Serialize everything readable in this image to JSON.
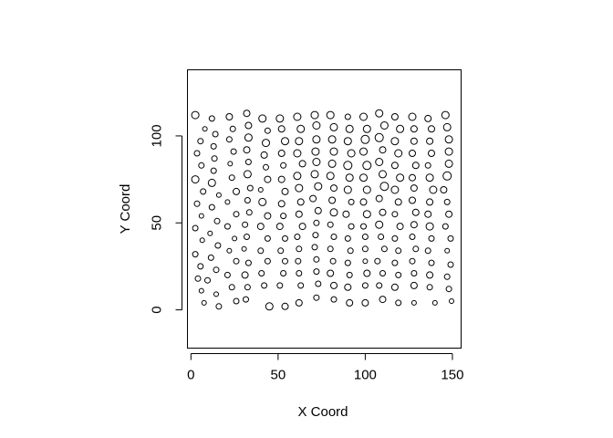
{
  "chart_data": {
    "type": "scatter",
    "title": "",
    "xlabel": "X Coord",
    "ylabel": "Y Coord",
    "xlim": [
      -2,
      155
    ],
    "ylim": [
      -22,
      138
    ],
    "xticks": [
      0,
      50,
      100,
      150
    ],
    "yticks": [
      0,
      50,
      100
    ],
    "xtick_labels": [
      "0",
      "50",
      "100",
      "150"
    ],
    "ytick_labels": [
      "0",
      "50",
      "100"
    ],
    "marker": "open-circle",
    "marker_color": "#000000",
    "grid": false,
    "size_encoding": "point diameter varies between points",
    "points": [
      [
        2.5,
        112,
        4
      ],
      [
        8,
        104,
        2.5
      ],
      [
        5.5,
        97,
        3
      ],
      [
        3.5,
        90,
        3
      ],
      [
        6,
        83,
        3
      ],
      [
        2.5,
        75,
        4
      ],
      [
        7,
        68,
        3
      ],
      [
        3.5,
        61,
        3
      ],
      [
        6,
        54,
        2.5
      ],
      [
        2.5,
        47,
        3
      ],
      [
        6.5,
        40,
        2.5
      ],
      [
        2.5,
        32,
        3
      ],
      [
        5.5,
        25,
        3
      ],
      [
        4,
        18,
        3
      ],
      [
        6,
        11,
        2.5
      ],
      [
        7.5,
        4,
        2.5
      ],
      [
        12,
        110,
        3
      ],
      [
        14,
        101,
        3
      ],
      [
        13,
        94,
        3
      ],
      [
        13.5,
        87,
        3
      ],
      [
        13,
        80,
        3
      ],
      [
        12,
        73,
        4
      ],
      [
        16,
        66,
        2.5
      ],
      [
        12,
        59,
        3
      ],
      [
        15,
        51,
        3
      ],
      [
        11,
        44,
        2.5
      ],
      [
        15.5,
        37,
        3
      ],
      [
        11.5,
        30,
        3
      ],
      [
        14.5,
        23,
        3
      ],
      [
        9.5,
        17,
        3
      ],
      [
        14.5,
        9,
        2.5
      ],
      [
        16,
        2,
        3
      ],
      [
        22,
        111,
        3.5
      ],
      [
        24,
        104,
        3
      ],
      [
        22,
        98,
        3
      ],
      [
        24.5,
        91,
        3
      ],
      [
        22.5,
        84,
        2.5
      ],
      [
        23.5,
        76,
        3
      ],
      [
        26,
        68,
        3.5
      ],
      [
        21,
        62,
        2.5
      ],
      [
        26,
        55,
        3
      ],
      [
        21,
        48,
        3
      ],
      [
        25,
        41,
        2.5
      ],
      [
        22,
        34,
        2.5
      ],
      [
        26,
        28,
        3
      ],
      [
        21,
        20,
        3
      ],
      [
        23.5,
        13,
        3
      ],
      [
        26,
        5,
        3
      ],
      [
        32,
        113,
        3.5
      ],
      [
        33,
        106,
        3.5
      ],
      [
        33,
        99,
        4
      ],
      [
        32,
        92,
        3.5
      ],
      [
        33,
        85,
        3
      ],
      [
        32.5,
        78,
        4
      ],
      [
        34,
        70,
        3
      ],
      [
        32.5,
        63,
        3
      ],
      [
        33.5,
        56,
        3
      ],
      [
        31,
        49,
        3
      ],
      [
        32,
        42,
        3
      ],
      [
        30.5,
        35,
        2.5
      ],
      [
        33,
        27,
        3
      ],
      [
        31,
        20,
        3.5
      ],
      [
        32.5,
        13,
        3
      ],
      [
        31.5,
        6,
        3
      ],
      [
        41,
        110,
        4
      ],
      [
        44,
        103,
        3
      ],
      [
        43,
        96,
        4
      ],
      [
        42,
        89,
        3.5
      ],
      [
        43,
        82,
        3
      ],
      [
        44,
        75,
        3.5
      ],
      [
        40,
        69,
        2.5
      ],
      [
        41,
        62,
        4
      ],
      [
        44,
        54,
        3.5
      ],
      [
        40,
        48,
        3.5
      ],
      [
        44,
        41,
        3
      ],
      [
        40,
        34,
        3
      ],
      [
        44,
        28,
        3
      ],
      [
        40.5,
        21,
        3
      ],
      [
        42,
        14,
        3
      ],
      [
        45,
        2,
        4
      ],
      [
        51,
        110,
        4
      ],
      [
        52,
        104,
        3.5
      ],
      [
        54,
        97,
        4
      ],
      [
        52,
        90,
        3.5
      ],
      [
        53,
        83,
        3
      ],
      [
        52,
        75,
        3.5
      ],
      [
        54,
        68,
        3.5
      ],
      [
        52,
        61,
        3.5
      ],
      [
        53,
        54,
        3
      ],
      [
        51,
        48,
        3.5
      ],
      [
        54,
        41,
        3
      ],
      [
        51.5,
        34,
        3
      ],
      [
        54,
        28,
        3
      ],
      [
        53,
        21,
        3
      ],
      [
        51,
        14,
        3
      ],
      [
        54,
        2,
        3.5
      ],
      [
        61,
        111,
        4
      ],
      [
        63,
        104,
        4
      ],
      [
        62,
        97,
        4
      ],
      [
        61,
        90,
        4
      ],
      [
        64,
        84,
        3.5
      ],
      [
        61,
        77,
        4
      ],
      [
        62,
        70,
        4
      ],
      [
        63,
        62,
        3.5
      ],
      [
        62,
        55,
        3.5
      ],
      [
        64,
        48,
        3.5
      ],
      [
        61,
        42,
        3
      ],
      [
        62,
        35,
        3
      ],
      [
        61.5,
        28,
        3
      ],
      [
        62,
        21,
        3
      ],
      [
        63,
        14,
        3
      ],
      [
        62,
        4,
        3.5
      ],
      [
        71,
        112,
        4
      ],
      [
        72,
        106,
        4
      ],
      [
        72,
        98,
        4
      ],
      [
        71.5,
        91,
        4
      ],
      [
        72,
        85,
        4
      ],
      [
        71,
        78,
        4
      ],
      [
        73,
        71,
        4
      ],
      [
        70,
        64,
        3.5
      ],
      [
        73,
        57,
        3.5
      ],
      [
        72,
        50,
        3
      ],
      [
        71.5,
        43,
        3
      ],
      [
        71,
        36,
        3
      ],
      [
        72,
        29,
        3
      ],
      [
        72,
        22,
        3
      ],
      [
        73,
        15,
        3
      ],
      [
        72,
        7,
        3
      ],
      [
        80,
        112,
        4
      ],
      [
        82,
        105,
        4
      ],
      [
        81,
        98,
        4
      ],
      [
        82,
        91,
        4
      ],
      [
        81,
        84,
        4
      ],
      [
        80,
        77,
        4
      ],
      [
        82,
        70,
        3.5
      ],
      [
        81,
        63,
        3.5
      ],
      [
        82,
        56,
        4
      ],
      [
        80,
        49,
        3
      ],
      [
        82,
        42,
        3
      ],
      [
        80,
        35,
        3
      ],
      [
        81.5,
        28,
        3
      ],
      [
        80,
        21,
        3.5
      ],
      [
        82,
        14,
        3.5
      ],
      [
        82,
        6,
        3
      ],
      [
        90,
        111,
        3
      ],
      [
        91,
        104,
        4
      ],
      [
        90,
        97,
        4
      ],
      [
        92,
        90,
        4
      ],
      [
        90,
        83,
        4.5
      ],
      [
        91,
        76,
        4
      ],
      [
        90,
        69,
        4
      ],
      [
        92,
        62,
        3
      ],
      [
        89,
        55,
        3.5
      ],
      [
        92,
        48,
        3
      ],
      [
        90,
        41,
        3
      ],
      [
        91.5,
        34,
        3
      ],
      [
        90,
        27,
        3
      ],
      [
        91,
        20,
        3
      ],
      [
        90,
        13,
        3.5
      ],
      [
        91,
        4,
        3.5
      ],
      [
        99,
        111,
        4
      ],
      [
        101,
        104,
        4
      ],
      [
        100,
        98,
        4.5
      ],
      [
        99,
        91,
        4
      ],
      [
        101,
        83,
        4.5
      ],
      [
        99,
        76,
        4
      ],
      [
        101,
        69,
        4
      ],
      [
        99,
        62,
        3.5
      ],
      [
        101,
        55,
        4
      ],
      [
        99,
        48,
        3
      ],
      [
        100,
        42,
        3
      ],
      [
        100,
        35,
        3
      ],
      [
        100,
        28,
        2.5
      ],
      [
        101,
        21,
        3.5
      ],
      [
        100,
        14,
        3
      ],
      [
        100,
        4,
        3.5
      ],
      [
        108,
        113,
        4
      ],
      [
        111,
        106,
        4
      ],
      [
        108,
        99,
        4.5
      ],
      [
        110,
        92,
        3.5
      ],
      [
        108,
        85,
        4
      ],
      [
        110,
        78,
        4
      ],
      [
        111,
        71,
        4.5
      ],
      [
        108,
        64,
        3.5
      ],
      [
        110,
        56,
        3.5
      ],
      [
        108,
        49,
        4
      ],
      [
        109,
        42,
        3
      ],
      [
        111,
        35,
        3
      ],
      [
        107,
        28,
        3
      ],
      [
        110,
        21,
        3
      ],
      [
        108,
        14,
        3
      ],
      [
        110,
        6,
        3.5
      ],
      [
        117,
        111,
        3.5
      ],
      [
        120,
        104,
        4
      ],
      [
        117,
        97,
        4
      ],
      [
        119,
        90,
        4
      ],
      [
        117,
        83,
        3.5
      ],
      [
        120,
        76,
        4
      ],
      [
        117,
        69,
        4
      ],
      [
        119,
        62,
        3.5
      ],
      [
        117,
        55,
        3
      ],
      [
        120,
        48,
        3.5
      ],
      [
        117,
        41,
        3
      ],
      [
        119,
        34,
        3
      ],
      [
        117,
        27,
        3
      ],
      [
        119,
        20,
        3
      ],
      [
        117,
        13,
        3.5
      ],
      [
        119,
        4,
        3
      ],
      [
        127,
        111,
        4
      ],
      [
        128,
        104,
        3.5
      ],
      [
        128,
        97,
        3.5
      ],
      [
        127,
        90,
        3.5
      ],
      [
        129,
        83,
        3.5
      ],
      [
        127,
        76,
        3.5
      ],
      [
        128,
        70,
        3.5
      ],
      [
        127,
        63,
        3.5
      ],
      [
        129,
        56,
        3.5
      ],
      [
        128,
        49,
        3.5
      ],
      [
        127,
        42,
        3
      ],
      [
        129,
        35,
        3
      ],
      [
        127,
        28,
        3
      ],
      [
        128,
        21,
        3
      ],
      [
        128,
        14,
        3.5
      ],
      [
        128,
        4,
        2.5
      ],
      [
        136,
        110,
        3.5
      ],
      [
        138,
        104,
        3.5
      ],
      [
        137,
        97,
        3.5
      ],
      [
        138,
        90,
        3.5
      ],
      [
        136,
        83,
        3
      ],
      [
        137,
        76,
        4
      ],
      [
        139,
        69,
        4
      ],
      [
        137,
        62,
        3.5
      ],
      [
        136,
        55,
        3.5
      ],
      [
        137,
        48,
        4
      ],
      [
        138,
        41,
        3
      ],
      [
        136,
        34,
        3
      ],
      [
        138,
        27,
        3
      ],
      [
        137,
        20,
        3.5
      ],
      [
        137,
        13,
        3
      ],
      [
        140,
        4,
        2.5
      ],
      [
        146,
        112,
        4
      ],
      [
        147,
        105,
        4
      ],
      [
        148,
        98,
        4
      ],
      [
        148,
        91,
        4
      ],
      [
        148,
        84,
        4
      ],
      [
        147,
        77,
        4.5
      ],
      [
        145,
        69,
        3.5
      ],
      [
        147,
        62,
        3
      ],
      [
        148,
        55,
        3.5
      ],
      [
        146,
        48,
        3
      ],
      [
        149,
        41,
        3
      ],
      [
        147,
        34,
        2.5
      ],
      [
        149,
        26,
        3
      ],
      [
        147,
        19,
        3
      ],
      [
        148,
        12,
        3
      ],
      [
        149.5,
        5,
        2.5
      ]
    ]
  }
}
